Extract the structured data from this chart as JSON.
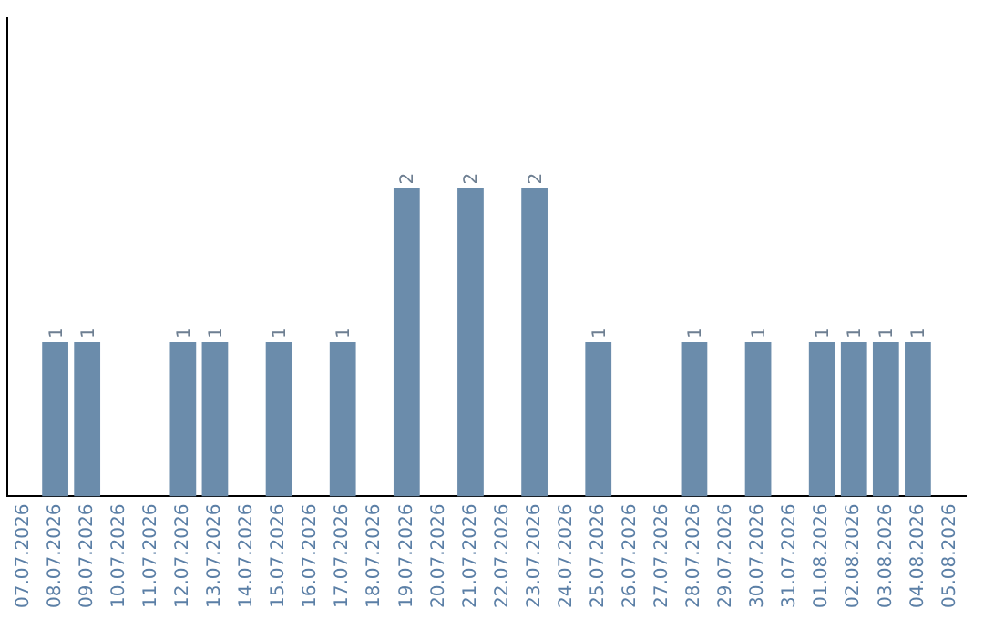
{
  "chart_data": {
    "type": "bar",
    "categories": [
      "07.07.2026",
      "08.07.2026",
      "09.07.2026",
      "10.07.2026",
      "11.07.2026",
      "12.07.2026",
      "13.07.2026",
      "14.07.2026",
      "15.07.2026",
      "16.07.2026",
      "17.07.2026",
      "18.07.2026",
      "19.07.2026",
      "20.07.2026",
      "21.07.2026",
      "22.07.2026",
      "23.07.2026",
      "24.07.2026",
      "25.07.2026",
      "26.07.2026",
      "27.07.2026",
      "28.07.2026",
      "29.07.2026",
      "30.07.2026",
      "31.07.2026",
      "01.08.2026",
      "02.08.2026",
      "03.08.2026",
      "04.08.2026",
      "05.08.2026"
    ],
    "values": [
      0,
      1,
      1,
      0,
      0,
      1,
      1,
      0,
      1,
      0,
      1,
      0,
      2,
      0,
      2,
      0,
      2,
      0,
      1,
      0,
      0,
      1,
      0,
      1,
      0,
      1,
      1,
      1,
      1,
      0
    ],
    "value_labels": [
      null,
      "1",
      "1",
      null,
      null,
      "1",
      "1",
      null,
      "1",
      null,
      "1",
      null,
      "2",
      null,
      "2",
      null,
      "2",
      null,
      "1",
      null,
      null,
      "1",
      null,
      "1",
      null,
      "1",
      "1",
      "1",
      "1",
      null
    ],
    "color": "#6b8cab",
    "ylim": [
      0,
      3.1
    ],
    "tick_labels": "x",
    "grid": false,
    "legend": false
  }
}
